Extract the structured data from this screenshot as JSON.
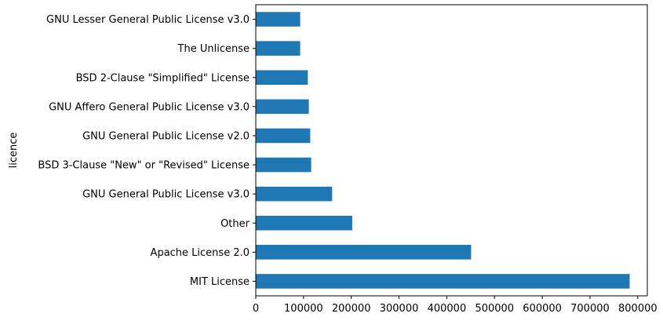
{
  "chart_data": {
    "type": "bar",
    "orientation": "horizontal",
    "title": "",
    "xlabel": "",
    "ylabel": "licence",
    "xlim": [
      0,
      820000
    ],
    "xticks": [
      0,
      100000,
      200000,
      300000,
      400000,
      500000,
      600000,
      700000,
      800000
    ],
    "xtick_labels": [
      "0",
      "100000",
      "200000",
      "300000",
      "400000",
      "500000",
      "600000",
      "700000",
      "800000"
    ],
    "categories": [
      "MIT License",
      "Apache License 2.0",
      "Other",
      "GNU General Public License v3.0",
      "BSD 3-Clause \"New\" or \"Revised\" License",
      "GNU General Public License v2.0",
      "GNU Affero General Public License v3.0",
      "BSD 2-Clause \"Simplified\" License",
      "The Unlicense",
      "GNU Lesser General Public License v3.0"
    ],
    "values": [
      783000,
      451000,
      202000,
      160000,
      116000,
      114000,
      111000,
      109000,
      93000,
      93000
    ],
    "bar_color": "#1f77b4",
    "grid": false,
    "legend": null
  }
}
